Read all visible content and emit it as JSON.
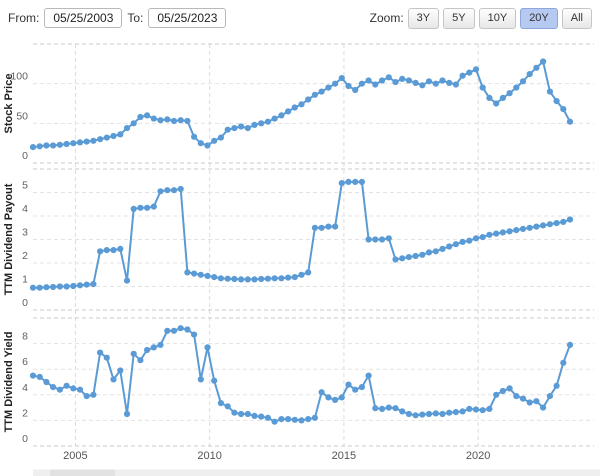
{
  "header": {
    "from_label": "From:",
    "from_value": "05/25/2003",
    "to_label": "To:",
    "to_value": "05/25/2023",
    "zoom_label": "Zoom:",
    "zoom_buttons": [
      {
        "label": "3Y",
        "active": false
      },
      {
        "label": "5Y",
        "active": false
      },
      {
        "label": "10Y",
        "active": false
      },
      {
        "label": "20Y",
        "active": true
      },
      {
        "label": "All",
        "active": false
      }
    ]
  },
  "colors": {
    "series_line": "#5b9bd5",
    "marker_fill": "#5b9bd5",
    "grid_inner": "#e3e3e3",
    "grid_boundary": "#c9c9c9",
    "grid_vertical": "#dcdcdc",
    "axis_tick_text": "#606060",
    "axis_title_text": "#222222",
    "year_text": "#555555",
    "active_zoom_bg": "#b6c9f0",
    "scrollbar_bg": "#efefef",
    "scrollbar_thumb": "#e2e2e2"
  },
  "x_axis": {
    "tick_labels": [
      "2005",
      "2010",
      "2015",
      "2020"
    ],
    "tick_years": [
      2005,
      2010,
      2015,
      2020
    ],
    "start_year": 2003.42,
    "step_years": 0.25,
    "grid": "dashed"
  },
  "chart_data": [
    {
      "type": "line",
      "title": "Stock Price",
      "ylabel": "Stock Price",
      "marker": "circle",
      "legend": "none",
      "ylim": [
        0,
        150
      ],
      "ygrid": [
        0,
        50,
        100,
        150
      ],
      "yticks": [
        0,
        50,
        100
      ],
      "values": [
        20,
        21,
        22,
        22,
        23,
        24,
        25,
        26,
        27,
        28,
        30,
        32,
        34,
        36,
        44,
        50,
        58,
        60,
        56,
        54,
        55,
        53,
        54,
        53,
        33,
        25,
        22,
        28,
        32,
        42,
        44,
        46,
        44,
        48,
        50,
        52,
        56,
        60,
        65,
        70,
        74,
        80,
        86,
        90,
        95,
        100,
        107,
        97,
        92,
        100,
        104,
        99,
        104,
        108,
        102,
        106,
        104,
        101,
        98,
        103,
        100,
        104,
        101,
        99,
        110,
        114,
        118,
        95,
        82,
        75,
        82,
        88,
        95,
        103,
        112,
        120,
        128,
        90,
        78,
        68,
        52
      ]
    },
    {
      "type": "line",
      "title": "TTM Dividend Payout",
      "ylabel": "TTM Dividend Payout",
      "marker": "circle",
      "legend": "none",
      "ylim": [
        0,
        6
      ],
      "ygrid": [
        0,
        1,
        2,
        3,
        4,
        5,
        6
      ],
      "yticks": [
        0,
        1,
        2,
        3,
        4,
        5
      ],
      "values": [
        0.95,
        0.95,
        0.97,
        0.98,
        1.0,
        1.0,
        1.02,
        1.05,
        1.08,
        1.1,
        2.5,
        2.55,
        2.55,
        2.6,
        1.25,
        4.3,
        4.35,
        4.35,
        4.4,
        5.05,
        5.1,
        5.1,
        5.15,
        1.6,
        1.55,
        1.5,
        1.45,
        1.4,
        1.35,
        1.33,
        1.32,
        1.3,
        1.3,
        1.3,
        1.32,
        1.33,
        1.35,
        1.35,
        1.38,
        1.4,
        1.5,
        1.6,
        3.5,
        3.5,
        3.55,
        3.55,
        5.4,
        5.45,
        5.45,
        5.45,
        3.0,
        3.0,
        3.0,
        3.05,
        2.15,
        2.2,
        2.25,
        2.3,
        2.35,
        2.45,
        2.5,
        2.6,
        2.7,
        2.8,
        2.9,
        2.95,
        3.05,
        3.1,
        3.2,
        3.25,
        3.3,
        3.35,
        3.4,
        3.45,
        3.5,
        3.55,
        3.6,
        3.65,
        3.7,
        3.75,
        3.85
      ]
    },
    {
      "type": "line",
      "title": "TTM Dividend Yield",
      "ylabel": "TTM Dividend Yield",
      "marker": "circle",
      "legend": "none",
      "ylim": [
        0,
        10
      ],
      "ygrid": [
        0,
        2,
        4,
        6,
        8,
        10
      ],
      "yticks": [
        0,
        2,
        4,
        6,
        8
      ],
      "values": [
        5.5,
        5.4,
        5.0,
        4.6,
        4.4,
        4.7,
        4.5,
        4.4,
        3.9,
        4.0,
        7.3,
        6.9,
        5.2,
        5.9,
        2.5,
        7.2,
        6.7,
        7.5,
        7.7,
        7.9,
        9.0,
        9.0,
        9.2,
        9.1,
        8.7,
        5.2,
        7.7,
        5.1,
        3.35,
        3.1,
        2.6,
        2.5,
        2.5,
        2.35,
        2.3,
        2.2,
        1.9,
        2.1,
        2.1,
        2.05,
        2.0,
        2.1,
        2.2,
        4.2,
        3.8,
        3.6,
        3.8,
        4.8,
        4.4,
        4.6,
        5.5,
        2.95,
        2.9,
        3.0,
        2.95,
        2.7,
        2.5,
        2.4,
        2.45,
        2.5,
        2.55,
        2.5,
        2.6,
        2.65,
        2.7,
        2.9,
        2.85,
        2.8,
        2.9,
        4.0,
        4.3,
        4.5,
        3.9,
        3.7,
        3.4,
        3.5,
        3.0,
        3.9,
        4.7,
        6.5,
        7.9
      ]
    }
  ]
}
